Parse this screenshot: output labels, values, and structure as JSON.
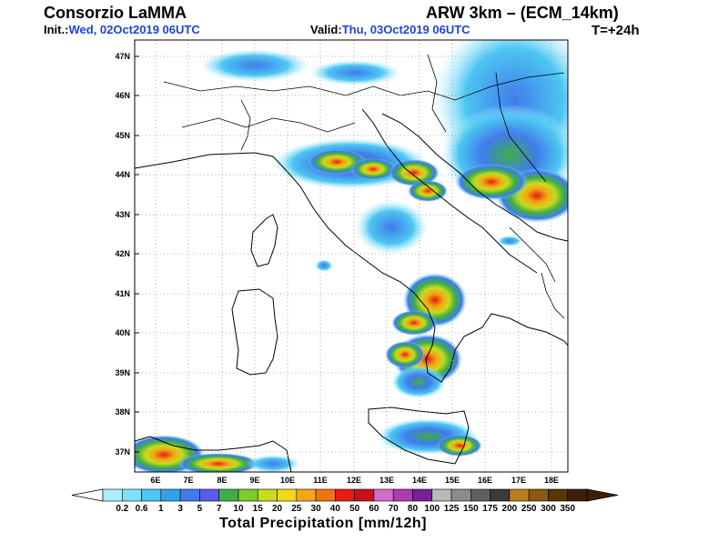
{
  "header": {
    "agency": "Consorzio LaMMA",
    "model": "ARW 3km – (ECM_14km)",
    "init_label": "Init.:",
    "init_value": "Wed, 02Oct2019 06UTC",
    "valid_label": "Valid:",
    "valid_value": "Thu, 03Oct2019 06UTC",
    "lead_time": "T=+24h"
  },
  "map": {
    "lat_labels": [
      "47N",
      "46N",
      "45N",
      "44N",
      "43N",
      "42N",
      "41N",
      "40N",
      "39N",
      "38N",
      "37N"
    ],
    "lon_labels": [
      "6E",
      "7E",
      "8E",
      "9E",
      "10E",
      "11E",
      "12E",
      "13E",
      "14E",
      "15E",
      "16E",
      "17E",
      "18E"
    ],
    "gridlines": "dotted"
  },
  "colorbar": {
    "title": "Total Precipitation [mm/12h]",
    "levels": [
      "0.2",
      "0.6",
      "1",
      "3",
      "5",
      "7",
      "10",
      "15",
      "20",
      "25",
      "30",
      "40",
      "50",
      "60",
      "70",
      "80",
      "100",
      "125",
      "150",
      "175",
      "200",
      "250",
      "300",
      "350"
    ],
    "colors": [
      "#aaf0ff",
      "#7fe0f7",
      "#4cc6f2",
      "#2ea3ea",
      "#3f7bec",
      "#5b5bf0",
      "#3fae45",
      "#7ccc2a",
      "#c8dc1c",
      "#f3d81a",
      "#f3a612",
      "#f27212",
      "#e61c12",
      "#c80f1c",
      "#d46ccc",
      "#b03ab0",
      "#7a1f96",
      "#b9b9b9",
      "#8c8c8c",
      "#5f5f5f",
      "#3a3a3a",
      "#b77d19",
      "#8a5a10",
      "#5a3508",
      "#3a2005"
    ]
  }
}
